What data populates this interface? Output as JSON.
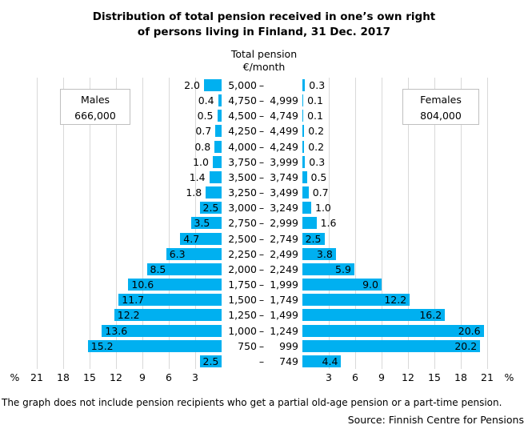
{
  "title": {
    "line1": "Distribution of total pension received in one’s own right",
    "line2": "of persons living in Finland, 31 Dec. 2017"
  },
  "center_axis_title": {
    "line1": "Total pension",
    "line2": "€/month"
  },
  "males_box": {
    "label": "Males",
    "count": "666,000"
  },
  "females_box": {
    "label": "Females",
    "count": "804,000"
  },
  "footnote": "The graph does not include pension recipients who get a partial old-age pension or a part-time pension.",
  "source": "Source: Finnish Centre for Pensions",
  "colors": {
    "bar": "#00B0F0",
    "gridline": "#D9D9D9",
    "box_border": "#BFBFBF",
    "text": "#000000"
  },
  "chart_data": {
    "type": "bar",
    "subtype": "population_pyramid",
    "title": "Distribution of total pension received in one’s own right of persons living in Finland, 31 Dec. 2017",
    "center_axis_label": "Total pension €/month",
    "unit_symbol": "%",
    "value_axis": {
      "ticks": [
        3,
        6,
        9,
        12,
        15,
        18,
        21
      ],
      "max": 21,
      "grid": true
    },
    "categories": [
      "5,000 –",
      "4,750 – 4,999",
      "4,500 – 4,749",
      "4,250 – 4,499",
      "4,000 – 4,249",
      "3,750 – 3,999",
      "3,500 – 3,749",
      "3,250 – 3,499",
      "3,000 – 3,249",
      "2,750 – 2,999",
      "2,500 – 2,749",
      "2,250 – 2,499",
      "2,000 – 2,249",
      "1,750 – 1,999",
      "1,500 – 1,749",
      "1,250 – 1,499",
      "1,000 – 1,249",
      "750 – 999",
      "– 749"
    ],
    "category_parts": [
      {
        "low": "5,000",
        "high": ""
      },
      {
        "low": "4,750",
        "high": "4,999"
      },
      {
        "low": "4,500",
        "high": "4,749"
      },
      {
        "low": "4,250",
        "high": "4,499"
      },
      {
        "low": "4,000",
        "high": "4,249"
      },
      {
        "low": "3,750",
        "high": "3,999"
      },
      {
        "low": "3,500",
        "high": "3,749"
      },
      {
        "low": "3,250",
        "high": "3,499"
      },
      {
        "low": "3,000",
        "high": "3,249"
      },
      {
        "low": "2,750",
        "high": "2,999"
      },
      {
        "low": "2,500",
        "high": "2,749"
      },
      {
        "low": "2,250",
        "high": "2,499"
      },
      {
        "low": "2,000",
        "high": "2,249"
      },
      {
        "low": "1,750",
        "high": "1,999"
      },
      {
        "low": "1,500",
        "high": "1,749"
      },
      {
        "low": "1,250",
        "high": "1,499"
      },
      {
        "low": "1,000",
        "high": "1,249"
      },
      {
        "low": "750",
        "high": "999"
      },
      {
        "low": "",
        "high": "749"
      }
    ],
    "series": [
      {
        "name": "Males",
        "total": "666,000",
        "side": "left",
        "values": [
          2.0,
          0.4,
          0.5,
          0.7,
          0.8,
          1.0,
          1.4,
          1.8,
          2.5,
          3.5,
          4.7,
          6.3,
          8.5,
          10.6,
          11.7,
          12.2,
          13.6,
          15.2,
          2.5
        ]
      },
      {
        "name": "Females",
        "total": "804,000",
        "side": "right",
        "values": [
          0.3,
          0.1,
          0.1,
          0.2,
          0.2,
          0.3,
          0.5,
          0.7,
          1.0,
          1.6,
          2.5,
          3.8,
          5.9,
          9.0,
          12.2,
          16.2,
          20.6,
          20.2,
          4.4
        ]
      }
    ]
  }
}
